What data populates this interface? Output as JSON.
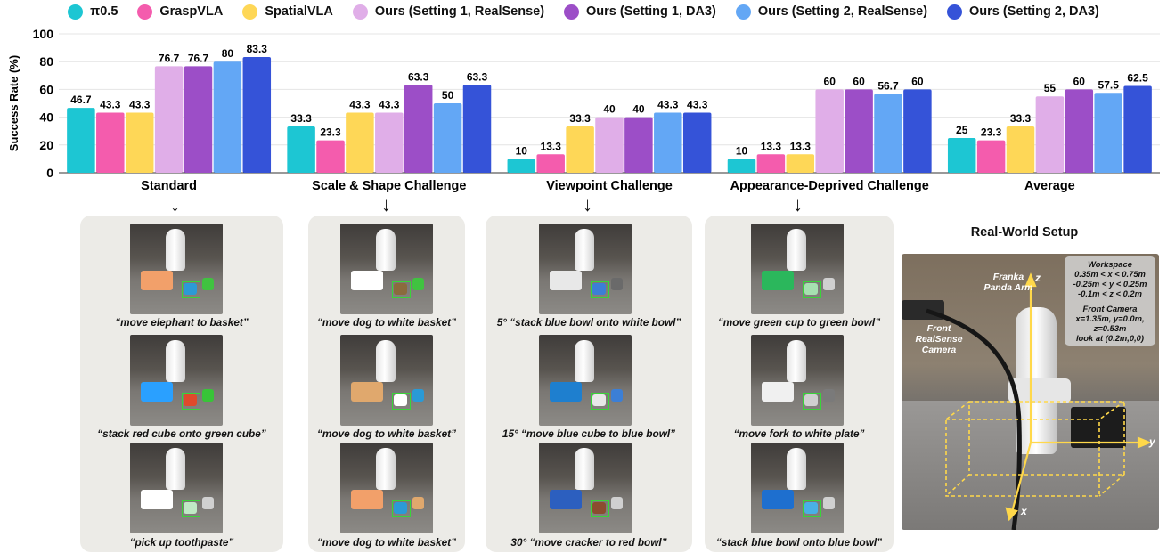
{
  "legend": [
    {
      "name": "π0.5",
      "color": "#1dc6d3"
    },
    {
      "name": "GraspVLA",
      "color": "#f45cad"
    },
    {
      "name": "SpatialVLA",
      "color": "#fed757"
    },
    {
      "name": "Ours (Setting 1, RealSense)",
      "color": "#e0aee8"
    },
    {
      "name": "Ours (Setting 1, DA3)",
      "color": "#9c4ec7"
    },
    {
      "name": "Ours (Setting 2, RealSense)",
      "color": "#63a7f5"
    },
    {
      "name": "Ours (Setting 2, DA3)",
      "color": "#3553d8"
    }
  ],
  "chart_data": {
    "type": "bar",
    "ylabel": "Success Rate (%)",
    "ylim": [
      0,
      100
    ],
    "yticks": [
      0,
      20,
      40,
      60,
      80,
      100
    ],
    "grid": true,
    "legend_position": "top",
    "categories": [
      "Standard",
      "Scale & Shape Challenge",
      "Viewpoint Challenge",
      "Appearance-Deprived Challenge",
      "Average"
    ],
    "series": [
      {
        "name": "π0.5",
        "values": [
          46.7,
          33.3,
          10,
          10,
          25
        ],
        "labels": [
          "46.7",
          "33.3",
          "10",
          "10",
          "25"
        ]
      },
      {
        "name": "GraspVLA",
        "values": [
          43.3,
          23.3,
          13.3,
          13.3,
          23.3
        ],
        "labels": [
          "43.3",
          "23.3",
          "13.3",
          "13.3",
          "23.3"
        ]
      },
      {
        "name": "SpatialVLA",
        "values": [
          43.3,
          43.3,
          33.3,
          13.3,
          33.3
        ],
        "labels": [
          "43.3",
          "43.3",
          "33.3",
          "13.3",
          "33.3"
        ]
      },
      {
        "name": "Ours (Setting 1, RealSense)",
        "values": [
          76.7,
          43.3,
          40,
          60,
          55
        ],
        "labels": [
          "76.7",
          "43.3",
          "40",
          "60",
          "55"
        ]
      },
      {
        "name": "Ours (Setting 1, DA3)",
        "values": [
          76.7,
          63.3,
          40,
          60,
          60
        ],
        "labels": [
          "76.7",
          "63.3",
          "40",
          "60",
          "60"
        ]
      },
      {
        "name": "Ours (Setting 2, RealSense)",
        "values": [
          80,
          50,
          43.3,
          56.7,
          57.5
        ],
        "labels": [
          "80",
          "50",
          "43.3",
          "56.7",
          "57.5"
        ]
      },
      {
        "name": "Ours (Setting 2, DA3)",
        "values": [
          83.3,
          63.3,
          43.3,
          60,
          62.5
        ],
        "labels": [
          "83.3",
          "63.3",
          "43.3",
          "60",
          "62.5"
        ]
      }
    ]
  },
  "arrow_glyph": "↓",
  "panels": [
    {
      "captions": [
        "“move elephant to basket”",
        "“stack red cube onto green cube”",
        "“pick up toothpaste”"
      ]
    },
    {
      "captions": [
        "“move dog to white basket”",
        "“move dog to white basket”",
        "“move dog to white basket”"
      ]
    },
    {
      "captions": [
        "5° “stack blue bowl onto white bowl”",
        "15° “move blue cube to blue bowl”",
        "30° “move cracker to red bowl”"
      ]
    },
    {
      "captions": [
        "“move green cup to green bowl”",
        "“move fork to white plate”",
        "“stack blue bowl onto blue bowl”"
      ]
    }
  ],
  "real_world": {
    "title": "Real-World Setup",
    "arm_label": "Franka Panda Arm",
    "camera_label": "Front RealSense Camera",
    "workspace_title": "Workspace",
    "workspace_lines": [
      "0.35m < x < 0.75m",
      "-0.25m < y < 0.25m",
      "-0.1m < z < 0.2m"
    ],
    "camera_title": "Front Camera",
    "camera_lines": [
      "x=1.35m, y=0.0m,",
      "z=0.53m",
      "look at (0.2m,0,0)"
    ],
    "axis_x": "x",
    "axis_y": "y",
    "axis_z": "z"
  }
}
